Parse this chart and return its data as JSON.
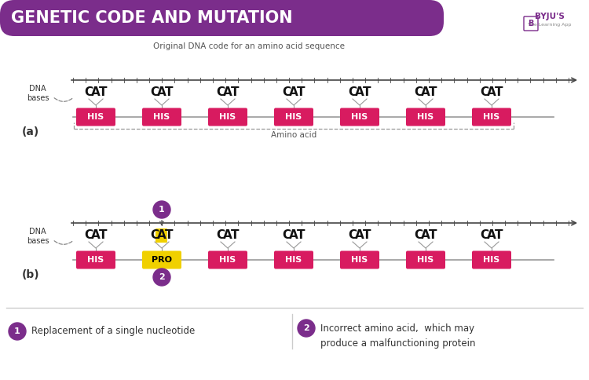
{
  "title": "GENETIC CODE AND MUTATION",
  "title_bg": "#7B2D8B",
  "title_color": "#FFFFFF",
  "bg_color": "#FFFFFF",
  "his_color": "#D81B60",
  "his_text_color": "#FFFFFF",
  "pro_color": "#F0D000",
  "pro_text_color": "#000000",
  "dna_line_color": "#444444",
  "codon_color": "#111111",
  "mutated_letter_bg": "#F0D000",
  "legend_circle_color": "#7B2D8B",
  "amino_labels_a": [
    "HIS",
    "HIS",
    "HIS",
    "HIS",
    "HIS",
    "HIS",
    "HIS"
  ],
  "amino_labels_b": [
    "HIS",
    "PRO",
    "HIS",
    "HIS",
    "HIS",
    "HIS",
    "HIS"
  ],
  "mutated_index_b": 1,
  "section_a_label": "(a)",
  "section_b_label": "(b)",
  "legend1_text": "Replacement of a single nucleotide",
  "legend2_text": "Incorrect amino acid,  which may\nproduce a malfunctioning protein",
  "orig_dna_text": "Original DNA code for an amino acid sequence",
  "dna_bases_text": "DNA\nbases",
  "amino_acid_text": "Amino acid"
}
